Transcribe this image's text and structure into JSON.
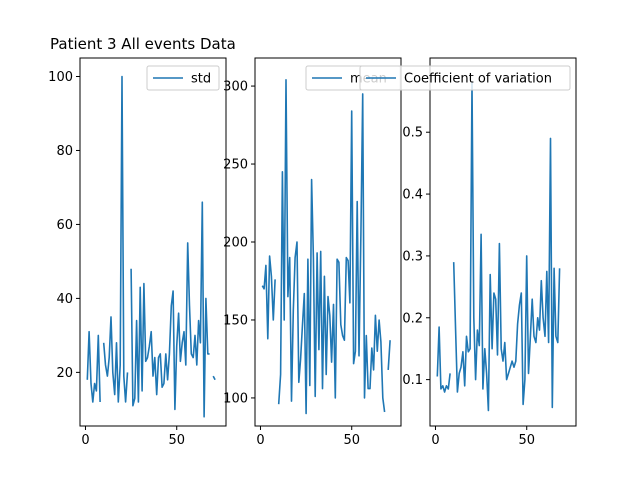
{
  "chart_data": [
    {
      "type": "line",
      "title": "Patient 3 All events Data",
      "xlabel": "",
      "ylabel": "",
      "xlim": [
        -3,
        77
      ],
      "ylim": [
        5.5,
        105
      ],
      "xticks": [
        0,
        50
      ],
      "yticks": [
        20,
        40,
        60,
        80,
        100
      ],
      "legend": "top-right",
      "grid": false,
      "series": [
        {
          "name": "std",
          "color": "#1f77b4",
          "points": [
            [
              1,
              18
            ],
            [
              2,
              31
            ],
            [
              3,
              17
            ],
            [
              4,
              12
            ],
            [
              5,
              17
            ],
            [
              6,
              15
            ],
            [
              7,
              30
            ],
            [
              8,
              12
            ],
            [
              9,
              null
            ],
            [
              10,
              28
            ],
            [
              11,
              22
            ],
            [
              12,
              19
            ],
            [
              13,
              24
            ],
            [
              14,
              35
            ],
            [
              15,
              20
            ],
            [
              16,
              14
            ],
            [
              17,
              28
            ],
            [
              18,
              12
            ],
            [
              19,
              22
            ],
            [
              20,
              100
            ],
            [
              21,
              19
            ],
            [
              22,
              12
            ],
            [
              23,
              20
            ],
            [
              24,
              null
            ],
            [
              25,
              48
            ],
            [
              26,
              11
            ],
            [
              27,
              13
            ],
            [
              28,
              34
            ],
            [
              29,
              12
            ],
            [
              30,
              43
            ],
            [
              31,
              15
            ],
            [
              32,
              44
            ],
            [
              33,
              23
            ],
            [
              34,
              24
            ],
            [
              35,
              27
            ],
            [
              36,
              31
            ],
            [
              37,
              19
            ],
            [
              38,
              24
            ],
            [
              39,
              14
            ],
            [
              40,
              24
            ],
            [
              41,
              25
            ],
            [
              42,
              16
            ],
            [
              43,
              17
            ],
            [
              44,
              25
            ],
            [
              45,
              18
            ],
            [
              46,
              25
            ],
            [
              47,
              38
            ],
            [
              48,
              42
            ],
            [
              49,
              10
            ],
            [
              50,
              27
            ],
            [
              51,
              36
            ],
            [
              52,
              23
            ],
            [
              53,
              28
            ],
            [
              54,
              31
            ],
            [
              55,
              22
            ],
            [
              56,
              55
            ],
            [
              57,
              38
            ],
            [
              58,
              25
            ],
            [
              59,
              24
            ],
            [
              60,
              30
            ],
            [
              61,
              22
            ],
            [
              62,
              34
            ],
            [
              63,
              28
            ],
            [
              64,
              66
            ],
            [
              65,
              8
            ],
            [
              66,
              40
            ],
            [
              67,
              25
            ],
            [
              68,
              25
            ],
            [
              69,
              null
            ],
            [
              70,
              19
            ],
            [
              71,
              18
            ]
          ]
        }
      ]
    },
    {
      "type": "line",
      "xlabel": "",
      "ylabel": "",
      "xlim": [
        -3,
        77
      ],
      "ylim": [
        82,
        318
      ],
      "xticks": [
        0,
        50
      ],
      "yticks": [
        100,
        150,
        200,
        250,
        300
      ],
      "legend": "top-right",
      "grid": false,
      "series": [
        {
          "name": "mean",
          "color": "#1f77b4",
          "points": [
            [
              1,
              172
            ],
            [
              2,
              170
            ],
            [
              3,
              185
            ],
            [
              4,
              138
            ],
            [
              5,
              191
            ],
            [
              6,
              178
            ],
            [
              7,
              150
            ],
            [
              8,
              176
            ],
            [
              9,
              null
            ],
            [
              10,
              96
            ],
            [
              11,
              115
            ],
            [
              12,
              245
            ],
            [
              13,
              150
            ],
            [
              14,
              304
            ],
            [
              15,
              165
            ],
            [
              16,
              190
            ],
            [
              17,
              98
            ],
            [
              18,
              156
            ],
            [
              19,
              190
            ],
            [
              20,
              200
            ],
            [
              21,
              110
            ],
            [
              22,
              125
            ],
            [
              23,
              146
            ],
            [
              24,
              167
            ],
            [
              25,
              90
            ],
            [
              26,
              189
            ],
            [
              27,
              108
            ],
            [
              28,
              240
            ],
            [
              29,
              190
            ],
            [
              30,
              101
            ],
            [
              31,
              193
            ],
            [
              32,
              131
            ],
            [
              33,
              194
            ],
            [
              34,
              106
            ],
            [
              35,
              178
            ],
            [
              36,
              115
            ],
            [
              37,
              165
            ],
            [
              38,
              153
            ],
            [
              39,
              123
            ],
            [
              40,
              160
            ],
            [
              41,
              100
            ],
            [
              42,
              189
            ],
            [
              43,
              187
            ],
            [
              44,
              147
            ],
            [
              45,
              140
            ],
            [
              46,
              137
            ],
            [
              47,
              190
            ],
            [
              48,
              188
            ],
            [
              49,
              161
            ],
            [
              50,
              284
            ],
            [
              51,
              122
            ],
            [
              52,
              130
            ],
            [
              53,
              226
            ],
            [
              54,
              127
            ],
            [
              55,
              205
            ],
            [
              56,
              295
            ],
            [
              57,
              100
            ],
            [
              58,
              140
            ],
            [
              59,
              106
            ],
            [
              60,
              106
            ],
            [
              61,
              132
            ],
            [
              62,
              118
            ],
            [
              63,
              153
            ],
            [
              64,
              130
            ],
            [
              65,
              150
            ],
            [
              66,
              136
            ],
            [
              67,
              100
            ],
            [
              68,
              91
            ],
            [
              69,
              null
            ],
            [
              70,
              118
            ],
            [
              71,
              137
            ]
          ]
        }
      ]
    },
    {
      "type": "line",
      "xlabel": "",
      "ylabel": "",
      "xlim": [
        -3,
        77
      ],
      "ylim": [
        0.025,
        0.62
      ],
      "xticks": [
        0,
        50
      ],
      "yticks": [
        0.1,
        0.2,
        0.3,
        0.4,
        0.5
      ],
      "legend": "top-right",
      "grid": false,
      "series": [
        {
          "name": "Coefficient of variation",
          "color": "#1f77b4",
          "points": [
            [
              1,
              0.105
            ],
            [
              2,
              0.185
            ],
            [
              3,
              0.085
            ],
            [
              4,
              0.09
            ],
            [
              5,
              0.08
            ],
            [
              6,
              0.09
            ],
            [
              7,
              0.085
            ],
            [
              8,
              0.11
            ],
            [
              9,
              null
            ],
            [
              10,
              0.29
            ],
            [
              11,
              0.18
            ],
            [
              12,
              0.08
            ],
            [
              13,
              0.11
            ],
            [
              14,
              0.12
            ],
            [
              15,
              0.145
            ],
            [
              16,
              0.09
            ],
            [
              17,
              0.17
            ],
            [
              18,
              0.145
            ],
            [
              19,
              0.15
            ],
            [
              20,
              0.58
            ],
            [
              21,
              0.2
            ],
            [
              22,
              0.1
            ],
            [
              23,
              0.18
            ],
            [
              24,
              0.155
            ],
            [
              25,
              0.335
            ],
            [
              26,
              0.085
            ],
            [
              27,
              0.15
            ],
            [
              28,
              0.11
            ],
            [
              29,
              0.05
            ],
            [
              30,
              0.27
            ],
            [
              31,
              0.15
            ],
            [
              32,
              0.24
            ],
            [
              33,
              0.23
            ],
            [
              34,
              0.14
            ],
            [
              35,
              0.32
            ],
            [
              36,
              0.15
            ],
            [
              37,
              0.13
            ],
            [
              38,
              0.16
            ],
            [
              39,
              0.1
            ],
            [
              40,
              0.11
            ],
            [
              41,
              0.12
            ],
            [
              42,
              0.13
            ],
            [
              43,
              0.12
            ],
            [
              44,
              0.13
            ],
            [
              45,
              0.19
            ],
            [
              46,
              0.22
            ],
            [
              47,
              0.24
            ],
            [
              48,
              0.06
            ],
            [
              49,
              0.1
            ],
            [
              50,
              0.3
            ],
            [
              51,
              0.11
            ],
            [
              52,
              0.17
            ],
            [
              53,
              0.23
            ],
            [
              54,
              0.17
            ],
            [
              55,
              0.16
            ],
            [
              56,
              0.2
            ],
            [
              57,
              0.18
            ],
            [
              58,
              0.26
            ],
            [
              59,
              0.2
            ],
            [
              60,
              0.17
            ],
            [
              61,
              0.275
            ],
            [
              62,
              0.16
            ],
            [
              63,
              0.49
            ],
            [
              64,
              0.055
            ],
            [
              65,
              0.28
            ],
            [
              66,
              0.17
            ],
            [
              67,
              0.16
            ],
            [
              68,
              0.28
            ],
            [
              69,
              null
            ],
            [
              70,
              0.135
            ]
          ]
        }
      ]
    }
  ]
}
